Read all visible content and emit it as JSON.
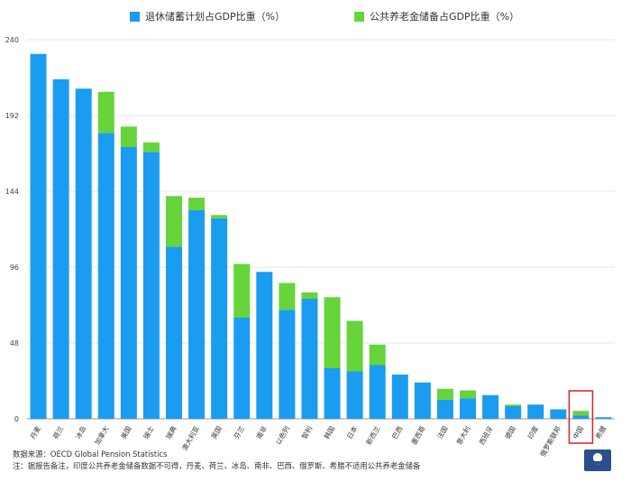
{
  "chart_data": {
    "type": "bar",
    "stacked": true,
    "categories": [
      "丹麦",
      "荷兰",
      "冰岛",
      "加拿大",
      "美国",
      "瑞士",
      "瑞典",
      "澳大利亚",
      "英国",
      "芬兰",
      "南非",
      "以色列",
      "智利",
      "韩国",
      "日本",
      "新西兰",
      "巴西",
      "墨西哥",
      "法国",
      "意大利",
      "西班牙",
      "德国",
      "印度",
      "俄罗斯联邦",
      "中国",
      "希腊"
    ],
    "series": [
      {
        "name": "退休储蓄计划占GDP比重（%）",
        "color": "#1a9cf0",
        "values": [
          231,
          215,
          209,
          181,
          172,
          169,
          109,
          132,
          127,
          64,
          93,
          69,
          76,
          32,
          30,
          34,
          28,
          23,
          12,
          13,
          15,
          8,
          9,
          6,
          2,
          1
        ]
      },
      {
        "name": "公共养老金储备占GDP比重（%）",
        "color": "#66d43a",
        "values": [
          0,
          0,
          0,
          26,
          13,
          6,
          32,
          8,
          2,
          34,
          0,
          17,
          4,
          45,
          32,
          13,
          0,
          0,
          7,
          5,
          0,
          1,
          0,
          0,
          3,
          0
        ]
      }
    ],
    "yticks": [
      0,
      48,
      96,
      144,
      192,
      240
    ],
    "ylim": [
      0,
      240
    ],
    "grid": true,
    "legend": "top-center",
    "highlight_category": "中国",
    "highlight_color": "#e02020"
  },
  "footer": {
    "source": "数据来源：OECD Global Pension Statistics",
    "note": "注：据报告备注，印度公共养老金储备数据不可得，丹麦、荷兰、冰岛、南非、巴西、俄罗斯、希腊不适用公共养老金储备"
  }
}
